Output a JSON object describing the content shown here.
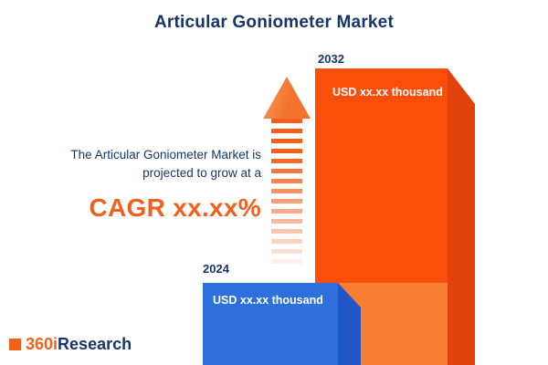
{
  "title": "Articular Goniometer Market",
  "description": {
    "line1": "The Articular Goniometer Market is",
    "line2": "projected to grow at a",
    "cagr": "CAGR xx.xx%"
  },
  "bars": {
    "start": {
      "year": "2024",
      "value": "USD xx.xx thousand"
    },
    "end": {
      "year": "2032",
      "value": "USD xx.xx thousand"
    }
  },
  "logo": {
    "prefix": "360i",
    "suffix": "Research"
  },
  "colors": {
    "navy": "#17356B",
    "accent": "#F2601C",
    "orange-bar": "#FA4E0A",
    "orange-side": "#E2410C",
    "orange-light": "#F87E33",
    "blue-bar": "#2D6FDB",
    "blue-side": "#2157C4"
  },
  "chart_data": {
    "type": "bar",
    "title": "Articular Goniometer Market",
    "categories": [
      "2024",
      "2032"
    ],
    "values": [
      null,
      null
    ],
    "value_labels": [
      "USD xx.xx thousand",
      "USD xx.xx thousand"
    ],
    "annotations": [
      "The Articular Goniometer Market is projected to grow at a CAGR xx.xx%"
    ],
    "xlabel": "",
    "ylabel": "",
    "legend": false,
    "grid": false
  }
}
